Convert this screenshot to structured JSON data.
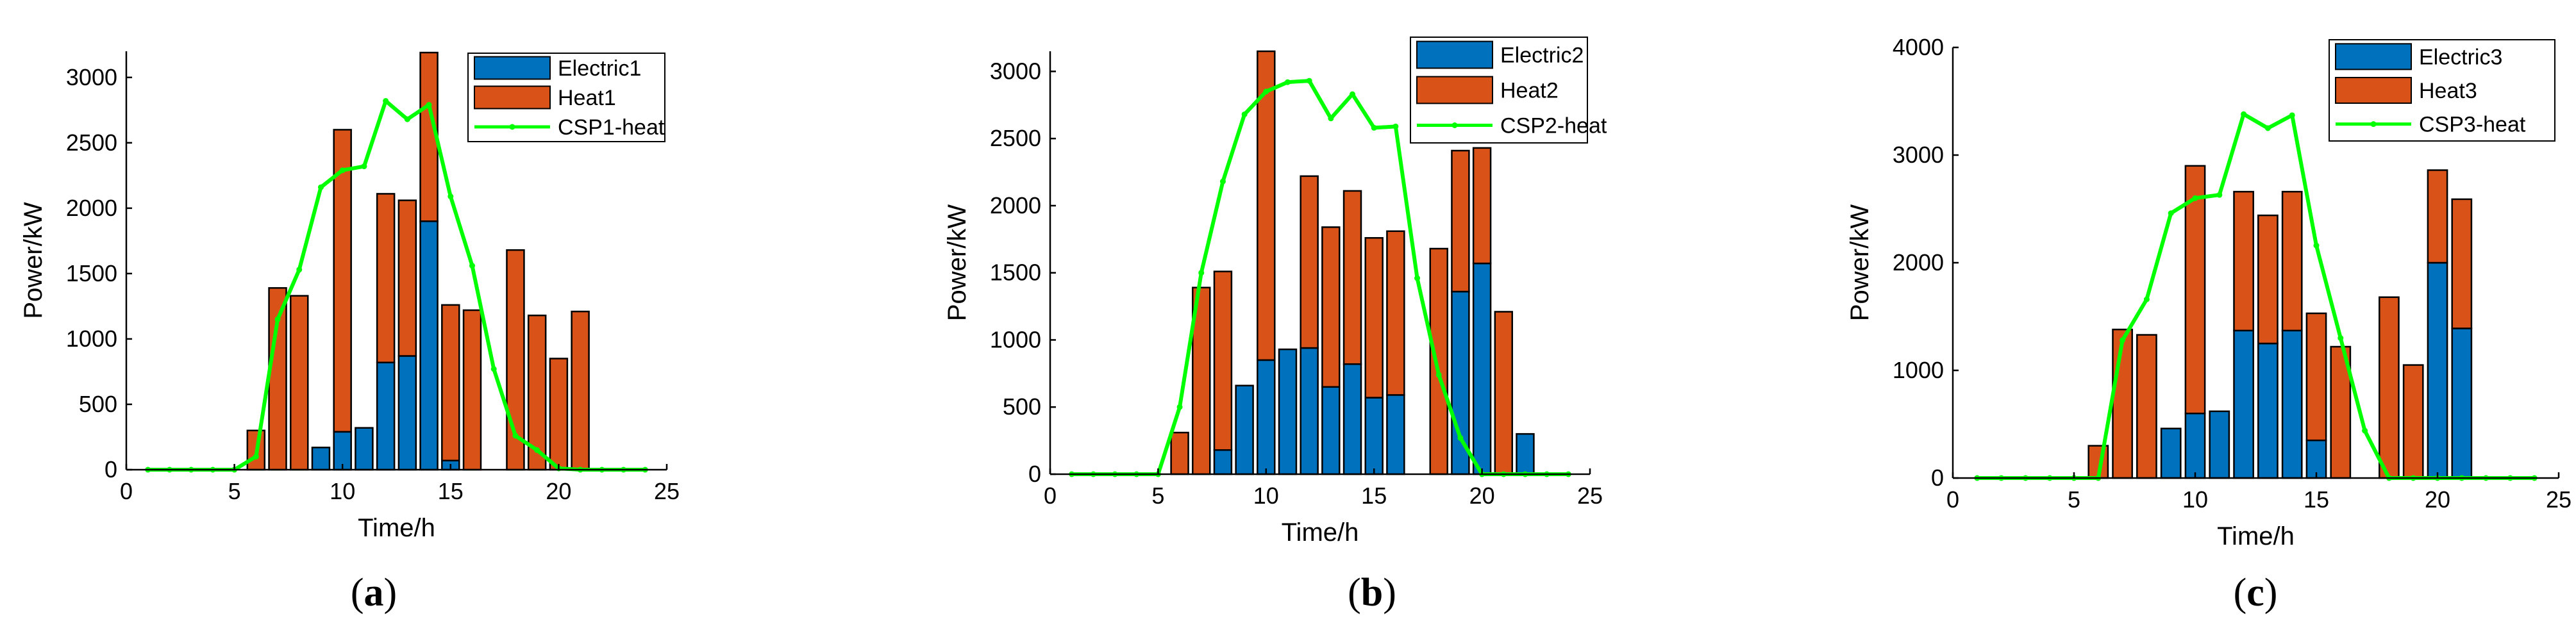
{
  "colors": {
    "electric": "#0072BD",
    "heat": "#D95319",
    "csp": "#00FF00",
    "axis": "#000000",
    "bar_edge": "#000000"
  },
  "chart_data": [
    {
      "type": "bar",
      "stacked": true,
      "panel_label": "(a)",
      "xlabel": "Time/h",
      "ylabel": "Power/kW",
      "xlim": [
        0,
        25
      ],
      "ylim": [
        0,
        3200
      ],
      "xticks": [
        0,
        5,
        10,
        15,
        20,
        25
      ],
      "yticks": [
        0,
        500,
        1000,
        1500,
        2000,
        2500,
        3000
      ],
      "grid": false,
      "legend_position": "top-right",
      "legend": [
        "Electric1",
        "Heat1",
        "CSP1-heat"
      ],
      "x": [
        1,
        2,
        3,
        4,
        5,
        6,
        7,
        8,
        9,
        10,
        11,
        12,
        13,
        14,
        15,
        16,
        17,
        18,
        19,
        20,
        21,
        22,
        23,
        24
      ],
      "series": [
        {
          "name": "Electric1",
          "kind": "bar",
          "values": [
            0,
            0,
            0,
            0,
            0,
            0,
            0,
            0,
            170,
            290,
            320,
            820,
            870,
            1900,
            70,
            0,
            0,
            0,
            0,
            0,
            0,
            0,
            0,
            0
          ]
        },
        {
          "name": "Heat1",
          "kind": "bar",
          "values": [
            0,
            0,
            0,
            0,
            0,
            300,
            1390,
            1330,
            0,
            2310,
            0,
            1290,
            1190,
            1290,
            1190,
            1220,
            0,
            1680,
            1180,
            850,
            1210,
            0,
            0,
            0
          ]
        },
        {
          "name": "CSP1-heat",
          "kind": "line",
          "values": [
            0,
            0,
            0,
            0,
            0,
            100,
            1150,
            1530,
            2160,
            2290,
            2320,
            2820,
            2680,
            2790,
            2090,
            1560,
            770,
            260,
            150,
            10,
            0,
            0,
            0,
            0
          ]
        }
      ]
    },
    {
      "type": "bar",
      "stacked": true,
      "panel_label": "(b)",
      "xlabel": "Time/h",
      "ylabel": "Power/kW",
      "xlim": [
        0,
        25
      ],
      "ylim": [
        0,
        3150
      ],
      "xticks": [
        0,
        5,
        10,
        15,
        20,
        25
      ],
      "yticks": [
        0,
        500,
        1000,
        1500,
        2000,
        2500,
        3000
      ],
      "grid": false,
      "legend_position": "top-right",
      "legend": [
        "Electric2",
        "Heat2",
        "CSP2-heat"
      ],
      "x": [
        1,
        2,
        3,
        4,
        5,
        6,
        7,
        8,
        9,
        10,
        11,
        12,
        13,
        14,
        15,
        16,
        17,
        18,
        19,
        20,
        21,
        22,
        23,
        24
      ],
      "series": [
        {
          "name": "Electric2",
          "kind": "bar",
          "values": [
            0,
            0,
            0,
            0,
            0,
            0,
            0,
            180,
            660,
            850,
            930,
            940,
            650,
            820,
            570,
            590,
            0,
            0,
            1360,
            1570,
            0,
            300,
            0,
            0
          ]
        },
        {
          "name": "Heat2",
          "kind": "bar",
          "values": [
            0,
            0,
            0,
            0,
            0,
            310,
            1390,
            1330,
            0,
            2300,
            0,
            1280,
            1190,
            1290,
            1190,
            1220,
            0,
            1680,
            1050,
            860,
            1210,
            0,
            0,
            0
          ]
        },
        {
          "name": "CSP2-heat",
          "kind": "line",
          "values": [
            0,
            0,
            0,
            0,
            0,
            500,
            1500,
            2180,
            2680,
            2850,
            2920,
            2930,
            2650,
            2830,
            2580,
            2590,
            1460,
            740,
            270,
            0,
            0,
            0,
            0,
            0
          ]
        }
      ]
    },
    {
      "type": "bar",
      "stacked": true,
      "panel_label": "(c)",
      "xlabel": "Time/h",
      "ylabel": "Power/kW",
      "xlim": [
        0,
        25
      ],
      "ylim": [
        0,
        4000
      ],
      "xticks": [
        0,
        5,
        10,
        15,
        20,
        25
      ],
      "yticks": [
        0,
        1000,
        2000,
        3000,
        4000
      ],
      "grid": false,
      "legend_position": "top-right",
      "legend": [
        "Electric3",
        "Heat3",
        "CSP3-heat"
      ],
      "x": [
        1,
        2,
        3,
        4,
        5,
        6,
        7,
        8,
        9,
        10,
        11,
        12,
        13,
        14,
        15,
        16,
        17,
        18,
        19,
        20,
        21,
        22,
        23,
        24
      ],
      "series": [
        {
          "name": "Electric3",
          "kind": "bar",
          "values": [
            0,
            0,
            0,
            0,
            0,
            0,
            0,
            0,
            460,
            600,
            620,
            1370,
            1250,
            1370,
            350,
            0,
            0,
            0,
            0,
            2000,
            1390,
            0,
            0,
            0
          ]
        },
        {
          "name": "Heat3",
          "kind": "bar",
          "values": [
            0,
            0,
            0,
            0,
            0,
            300,
            1380,
            1330,
            0,
            2300,
            0,
            1290,
            1190,
            1290,
            1180,
            1220,
            0,
            1680,
            1050,
            860,
            1200,
            0,
            0,
            0
          ]
        },
        {
          "name": "CSP3-heat",
          "kind": "line",
          "values": [
            0,
            0,
            0,
            0,
            0,
            0,
            1280,
            1660,
            2460,
            2600,
            2630,
            3380,
            3250,
            3370,
            2160,
            1300,
            440,
            0,
            0,
            0,
            0,
            0,
            0,
            0
          ]
        }
      ]
    }
  ]
}
